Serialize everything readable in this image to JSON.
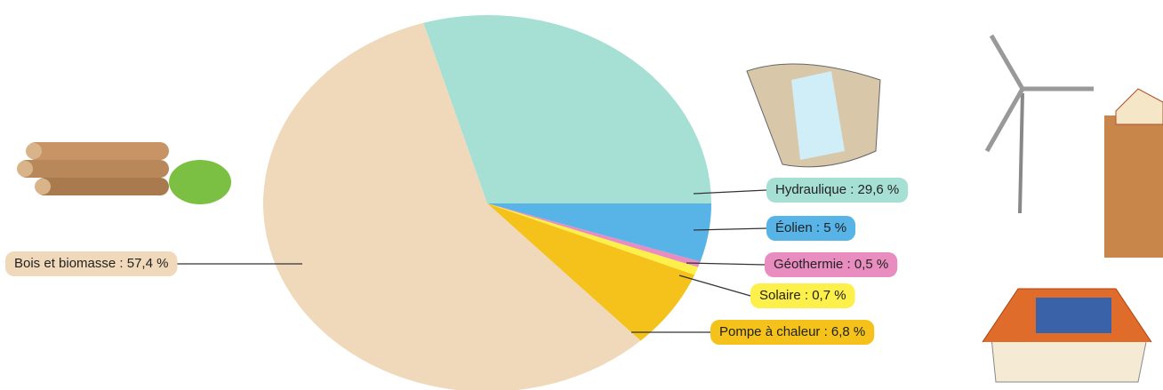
{
  "chart_data": {
    "type": "pie",
    "values": [
      29.6,
      5,
      0.5,
      0.7,
      6.8,
      57.4
    ],
    "value_labels": [
      "Hydraulique : 29,6 %",
      "Éolien : 5 %",
      "Géothermie : 0,5 %",
      "Solaire : 0,7 %",
      "Pompe à chaleur : 6,8 %",
      "Bois et biomasse : 57,4 %"
    ],
    "colors": [
      "#a6e0d5",
      "#58b3e6",
      "#e98cc0",
      "#fdf04a",
      "#f4c21a",
      "#f0d9ba"
    ]
  }
}
